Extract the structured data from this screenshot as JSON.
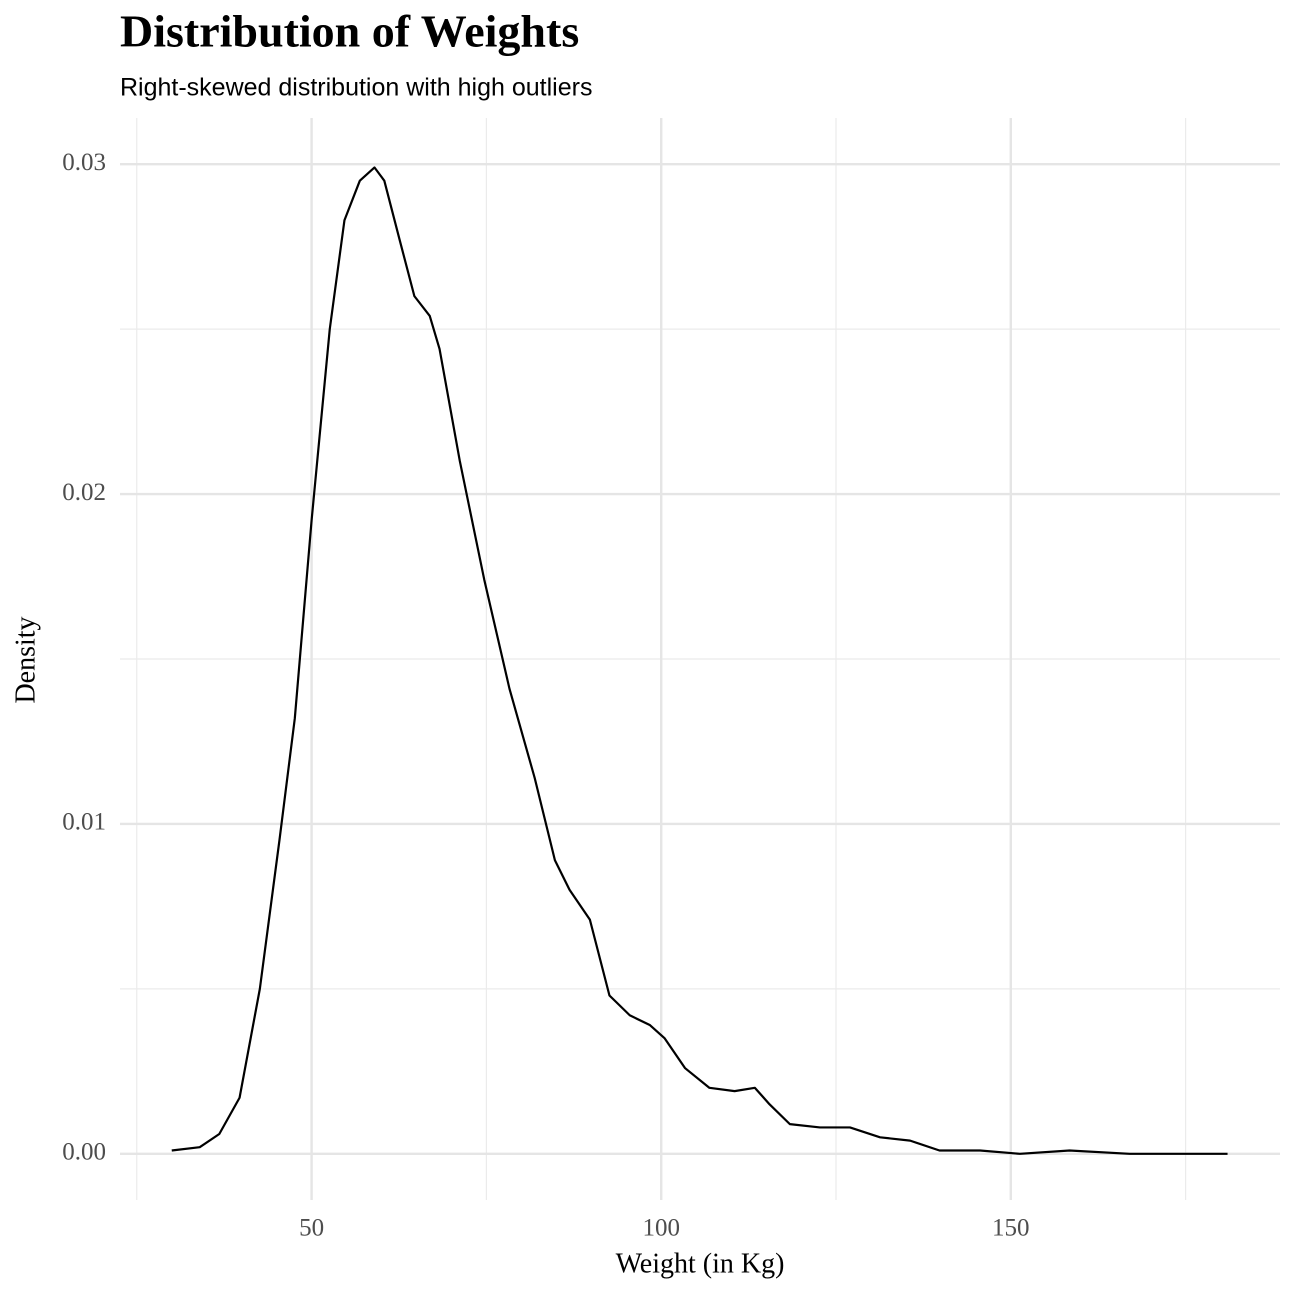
{
  "chart_data": {
    "type": "line",
    "title": "Distribution of Weights",
    "subtitle": "Right-skewed distribution with high outliers",
    "x_label": "Weight (in Kg)",
    "y_label": "Density",
    "x": [
      30,
      34,
      36.8,
      39.7,
      42.6,
      45.4,
      47.6,
      50,
      52.6,
      54.7,
      56.9,
      59,
      60.4,
      62.6,
      64.7,
      66.9,
      68.3,
      71.2,
      74.7,
      78.3,
      81.9,
      84.8,
      86.9,
      89.8,
      92.6,
      95.5,
      98.4,
      100.5,
      103.4,
      106.9,
      110.5,
      113.4,
      115.5,
      118.4,
      122.7,
      127,
      131.3,
      135.6,
      139.8,
      145.6,
      151.3,
      158.4,
      167,
      181
    ],
    "series": [
      {
        "color": "#000000",
        "values": [
          0.0001,
          0.0002,
          0.0006,
          0.0017,
          0.005,
          0.0095,
          0.0132,
          0.0192,
          0.025,
          0.0283,
          0.0295,
          0.0299,
          0.0295,
          0.0277,
          0.026,
          0.0254,
          0.0244,
          0.021,
          0.0174,
          0.0141,
          0.0114,
          0.0089,
          0.008,
          0.0071,
          0.0048,
          0.0042,
          0.0039,
          0.0035,
          0.0026,
          0.002,
          0.0019,
          0.002,
          0.0015,
          0.0009,
          0.0008,
          0.0008,
          0.0005,
          0.0004,
          0.0001,
          0.0001,
          0,
          0.0001,
          0,
          0
        ]
      }
    ],
    "xlim": [
      22.6,
      188.5
    ],
    "ylim": [
      -0.0014,
      0.0314
    ],
    "xticks": [
      50,
      100,
      150
    ],
    "yticks": [
      {
        "value": 0,
        "label": "0.00"
      },
      0.01,
      0.02,
      0.03
    ],
    "x_minor_grid": [
      25,
      75,
      125,
      175
    ],
    "y_minor_grid": [
      0.005,
      0.015,
      0.025
    ],
    "grid": true
  }
}
